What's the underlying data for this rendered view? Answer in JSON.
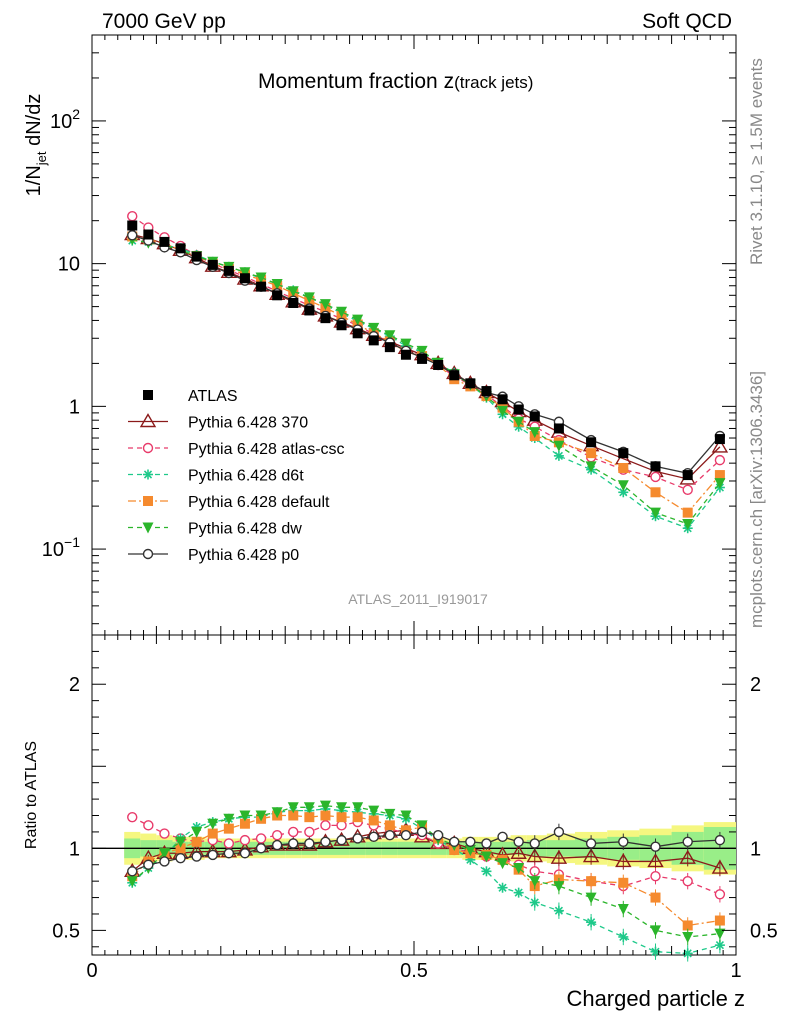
{
  "header": {
    "left": "7000 GeV pp",
    "right": "Soft QCD",
    "title_main": "Momentum fraction ",
    "title_z": "z",
    "title_sub": "(track jets)",
    "side_top": "Rivet 3.1.10, ≥ 1.5M events",
    "side_bottom": "mcplots.cern.ch [arXiv:1306.3436]",
    "analysis": "ATLAS_2011_I919017"
  },
  "axes": {
    "ylabel_top": "1/N",
    "ylabel_top_sub": "jet",
    "ylabel_top_tail": " dN/dz",
    "ylabel_bottom": "Ratio to ATLAS",
    "xlabel": "Charged particle z"
  },
  "chart_data": [
    {
      "type": "line",
      "panel": "main",
      "yscale": "log",
      "xlim": [
        0,
        1
      ],
      "ylim": [
        0.025,
        400
      ],
      "x_ticklabels": [
        "0",
        "0.5",
        "1"
      ],
      "y_ticklabels": [
        {
          "value": 0.1,
          "base": "10",
          "exp": "−1"
        },
        {
          "value": 1,
          "base": "1",
          "exp": ""
        },
        {
          "value": 10,
          "base": "10",
          "exp": ""
        },
        {
          "value": 100,
          "base": "10",
          "exp": "2"
        }
      ],
      "x": [
        0.0625,
        0.0875,
        0.1125,
        0.1375,
        0.1625,
        0.1875,
        0.2125,
        0.2375,
        0.2625,
        0.2875,
        0.3125,
        0.3375,
        0.3625,
        0.3875,
        0.4125,
        0.4375,
        0.4625,
        0.4875,
        0.5125,
        0.5375,
        0.5625,
        0.5875,
        0.6125,
        0.6375,
        0.6625,
        0.6875,
        0.725,
        0.775,
        0.825,
        0.875,
        0.925,
        0.975
      ],
      "legend_position": "middle-left",
      "series": [
        {
          "name": "ATLAS",
          "color": "#000000",
          "marker": "square-filled",
          "line": "none",
          "values": [
            18.5,
            16.0,
            14.2,
            12.8,
            11.2,
            9.8,
            8.9,
            7.9,
            6.9,
            6.0,
            5.3,
            4.7,
            4.15,
            3.7,
            3.25,
            2.9,
            2.6,
            2.3,
            2.15,
            1.95,
            1.65,
            1.45,
            1.28,
            1.12,
            0.95,
            0.85,
            0.7,
            0.56,
            0.47,
            0.38,
            0.33,
            0.59
          ]
        },
        {
          "name": "Pythia 6.428 370",
          "color": "#8b1a1a",
          "marker": "triangle-open",
          "line": "solid",
          "values": [
            16.0,
            15.0,
            13.8,
            12.4,
            11.0,
            9.6,
            8.7,
            7.8,
            7.0,
            6.1,
            5.4,
            4.8,
            4.3,
            3.9,
            3.5,
            3.15,
            2.85,
            2.55,
            2.3,
            2.0,
            1.7,
            1.45,
            1.25,
            1.08,
            0.92,
            0.8,
            0.66,
            0.53,
            0.43,
            0.35,
            0.31,
            0.52
          ]
        },
        {
          "name": "Pythia 6.428 atlas-csc",
          "color": "#e83a6a",
          "marker": "circle-open",
          "line": "dashed",
          "values": [
            21.5,
            17.9,
            15.3,
            13.3,
            11.4,
            10.0,
            9.0,
            8.1,
            7.2,
            6.4,
            5.7,
            5.1,
            4.6,
            4.1,
            3.7,
            3.2,
            2.8,
            2.45,
            2.25,
            1.95,
            1.62,
            1.42,
            1.2,
            1.0,
            0.82,
            0.72,
            0.58,
            0.44,
            0.36,
            0.32,
            0.26,
            0.42
          ]
        },
        {
          "name": "Pythia 6.428 d6t",
          "color": "#1ec98a",
          "marker": "star",
          "line": "dashed",
          "values": [
            14.5,
            14.2,
            13.5,
            12.8,
            11.5,
            10.3,
            9.5,
            8.7,
            7.9,
            7.2,
            6.5,
            5.8,
            5.1,
            4.5,
            3.95,
            3.5,
            3.1,
            2.65,
            2.4,
            2.0,
            1.72,
            1.42,
            1.15,
            0.88,
            0.72,
            0.6,
            0.45,
            0.36,
            0.25,
            0.17,
            0.14,
            0.27
          ]
        },
        {
          "name": "Pythia 6.428 default",
          "color": "#f58a2e",
          "marker": "square-filled",
          "line": "dashdot",
          "values": [
            15.5,
            14.8,
            13.8,
            12.5,
            11.3,
            10.0,
            9.2,
            8.4,
            7.7,
            7.0,
            6.2,
            5.5,
            4.9,
            4.3,
            3.75,
            3.25,
            2.85,
            2.4,
            2.25,
            1.95,
            1.55,
            1.38,
            1.18,
            0.98,
            0.78,
            0.62,
            0.56,
            0.47,
            0.37,
            0.25,
            0.18,
            0.33
          ]
        },
        {
          "name": "Pythia 6.428 dw",
          "color": "#2bb52b",
          "marker": "triangle-down-filled",
          "line": "dashed",
          "values": [
            14.8,
            14.0,
            13.5,
            12.4,
            11.3,
            10.3,
            9.5,
            8.7,
            8.0,
            7.2,
            6.4,
            5.8,
            5.2,
            4.6,
            4.05,
            3.55,
            3.15,
            2.75,
            2.45,
            2.02,
            1.68,
            1.42,
            1.18,
            0.93,
            0.78,
            0.66,
            0.53,
            0.38,
            0.28,
            0.18,
            0.15,
            0.29
          ]
        },
        {
          "name": "Pythia 6.428 p0",
          "color": "#333333",
          "marker": "circle-open",
          "line": "solid",
          "values": [
            15.8,
            14.5,
            13.0,
            12.0,
            10.6,
            9.5,
            8.6,
            7.6,
            6.9,
            6.2,
            5.5,
            4.85,
            4.3,
            3.85,
            3.45,
            3.1,
            2.8,
            2.45,
            2.2,
            1.95,
            1.68,
            1.45,
            1.25,
            1.17,
            1.0,
            0.88,
            0.78,
            0.58,
            0.48,
            0.38,
            0.34,
            0.62
          ]
        }
      ]
    },
    {
      "type": "line",
      "panel": "ratio",
      "xlim": [
        0,
        1
      ],
      "ylim": [
        0.35,
        2.3
      ],
      "x_ticklabels": [
        "0",
        "0.5",
        "1"
      ],
      "y_ticklabels": [
        "0.5",
        "1",
        "2"
      ],
      "x": [
        0.0625,
        0.0875,
        0.1125,
        0.1375,
        0.1625,
        0.1875,
        0.2125,
        0.2375,
        0.2625,
        0.2875,
        0.3125,
        0.3375,
        0.3625,
        0.3875,
        0.4125,
        0.4375,
        0.4625,
        0.4875,
        0.5125,
        0.5375,
        0.5625,
        0.5875,
        0.6125,
        0.6375,
        0.6625,
        0.6875,
        0.725,
        0.775,
        0.825,
        0.875,
        0.925,
        0.975
      ],
      "band_stat_half": [
        0.06,
        0.05,
        0.05,
        0.04,
        0.04,
        0.04,
        0.04,
        0.04,
        0.04,
        0.04,
        0.04,
        0.04,
        0.04,
        0.04,
        0.04,
        0.04,
        0.04,
        0.04,
        0.04,
        0.04,
        0.04,
        0.04,
        0.04,
        0.04,
        0.04,
        0.05,
        0.05,
        0.06,
        0.07,
        0.08,
        0.1,
        0.13
      ],
      "band_total_half": [
        0.1,
        0.09,
        0.08,
        0.07,
        0.07,
        0.06,
        0.06,
        0.06,
        0.06,
        0.06,
        0.06,
        0.06,
        0.06,
        0.06,
        0.06,
        0.06,
        0.06,
        0.06,
        0.06,
        0.06,
        0.06,
        0.07,
        0.07,
        0.07,
        0.08,
        0.08,
        0.09,
        0.1,
        0.11,
        0.12,
        0.14,
        0.16
      ],
      "series": [
        {
          "name": "Pythia 6.428 370",
          "color": "#8b1a1a",
          "values": [
            0.86,
            0.94,
            0.97,
            0.97,
            0.98,
            0.98,
            0.98,
            0.99,
            1.01,
            1.02,
            1.02,
            1.02,
            1.04,
            1.05,
            1.07,
            1.09,
            1.1,
            1.11,
            1.07,
            1.03,
            1.03,
            1.0,
            0.98,
            0.96,
            0.97,
            0.95,
            0.94,
            0.95,
            0.92,
            0.92,
            0.94,
            0.88
          ]
        },
        {
          "name": "Pythia 6.428 atlas-csc",
          "color": "#e83a6a",
          "values": [
            1.19,
            1.14,
            1.09,
            1.06,
            1.04,
            1.05,
            1.03,
            1.05,
            1.06,
            1.08,
            1.1,
            1.1,
            1.14,
            1.14,
            1.16,
            1.14,
            1.12,
            1.09,
            1.08,
            1.03,
            0.99,
            0.98,
            0.95,
            0.93,
            0.9,
            0.86,
            0.84,
            0.8,
            0.77,
            0.83,
            0.8,
            0.72
          ]
        },
        {
          "name": "Pythia 6.428 d6t",
          "color": "#1ec98a",
          "values": [
            0.79,
            0.88,
            0.95,
            1.06,
            1.13,
            1.16,
            1.18,
            1.19,
            1.19,
            1.22,
            1.23,
            1.23,
            1.24,
            1.23,
            1.22,
            1.21,
            1.2,
            1.18,
            1.12,
            1.05,
            1.0,
            0.93,
            0.86,
            0.76,
            0.73,
            0.67,
            0.62,
            0.55,
            0.46,
            0.37,
            0.36,
            0.41
          ]
        },
        {
          "name": "Pythia 6.428 default",
          "color": "#f58a2e",
          "values": [
            0.83,
            0.92,
            0.97,
            1.0,
            1.04,
            1.09,
            1.12,
            1.15,
            1.18,
            1.2,
            1.2,
            1.19,
            1.2,
            1.19,
            1.19,
            1.17,
            1.14,
            1.11,
            1.13,
            1.06,
            0.99,
            0.97,
            0.96,
            0.93,
            0.87,
            0.77,
            0.81,
            0.8,
            0.79,
            0.7,
            0.53,
            0.56
          ]
        },
        {
          "name": "Pythia 6.428 dw",
          "color": "#2bb52b",
          "values": [
            0.8,
            0.88,
            0.97,
            1.04,
            1.1,
            1.15,
            1.18,
            1.2,
            1.2,
            1.22,
            1.25,
            1.25,
            1.26,
            1.25,
            1.25,
            1.23,
            1.21,
            1.2,
            1.14,
            1.06,
            1.02,
            0.99,
            0.95,
            0.91,
            0.88,
            0.8,
            0.77,
            0.7,
            0.63,
            0.5,
            0.46,
            0.48
          ]
        },
        {
          "name": "Pythia 6.428 p0",
          "color": "#333333",
          "values": [
            0.86,
            0.9,
            0.92,
            0.94,
            0.95,
            0.96,
            0.97,
            0.97,
            1.0,
            1.02,
            1.03,
            1.03,
            1.04,
            1.05,
            1.06,
            1.07,
            1.08,
            1.08,
            1.1,
            1.08,
            1.04,
            1.04,
            1.03,
            1.07,
            1.04,
            1.03,
            1.1,
            1.03,
            1.04,
            1.01,
            1.04,
            1.05
          ]
        }
      ]
    }
  ]
}
